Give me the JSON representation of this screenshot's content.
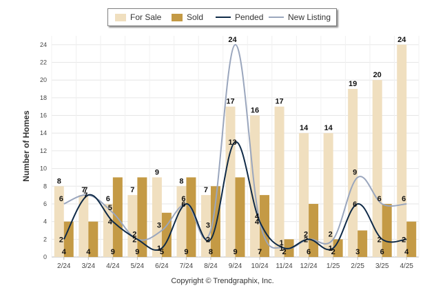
{
  "chart_data": {
    "type": "bar",
    "categories": [
      "2/24",
      "3/24",
      "4/24",
      "5/24",
      "6/24",
      "7/24",
      "8/24",
      "9/24",
      "10/24",
      "11/24",
      "12/24",
      "1/25",
      "2/25",
      "3/25",
      "4/25"
    ],
    "series": [
      {
        "name": "For Sale",
        "kind": "bar",
        "color": "#f0dfbf",
        "values": [
          8,
          7,
          6,
          7,
          9,
          8,
          7,
          17,
          16,
          17,
          14,
          14,
          19,
          20,
          24
        ]
      },
      {
        "name": "Sold",
        "kind": "bar",
        "color": "#c49a45",
        "values": [
          4,
          4,
          9,
          9,
          5,
          9,
          8,
          9,
          7,
          2,
          6,
          2,
          3,
          6,
          4
        ]
      },
      {
        "name": "Pended",
        "kind": "line",
        "color": "#0f2a47",
        "values": [
          2,
          7,
          4,
          2,
          1,
          6,
          2,
          13,
          4,
          1,
          2,
          1,
          6,
          2,
          2
        ]
      },
      {
        "name": "New Listing",
        "kind": "line",
        "color": "#9aa6bd",
        "values": [
          6,
          7,
          5,
          2,
          3,
          6,
          3,
          24,
          4,
          1,
          2,
          2,
          9,
          6,
          6
        ]
      }
    ],
    "ylabel": "Number of Homes",
    "ylim": [
      0,
      25
    ],
    "yticks": [
      0,
      2,
      4,
      6,
      8,
      10,
      12,
      14,
      16,
      18,
      20,
      22,
      24
    ],
    "grid": true,
    "legend_position": "top"
  },
  "footer": {
    "copyright": "Copyright © Trendgraphix, Inc."
  }
}
